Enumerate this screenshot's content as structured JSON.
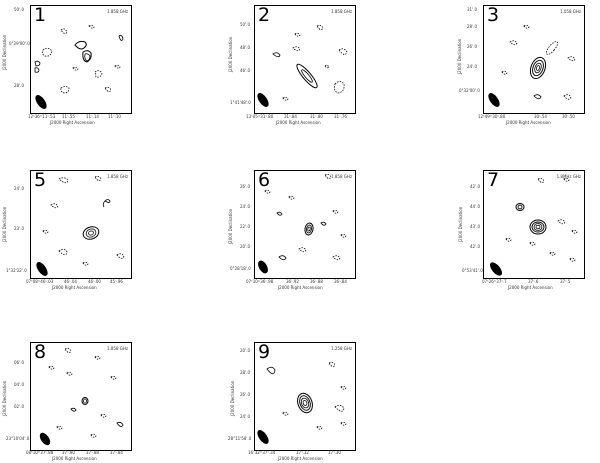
{
  "panels": [
    {
      "number": "1",
      "freq": "1.858 GHz",
      "ylabel": "J2000 Declination",
      "xlabel": "J2000 Right Ascension",
      "yticks": [
        "50'.0",
        "0°29'00'.0",
        "28'.0"
      ],
      "xticks": [
        "12ʰ36ᵐ11ˢ.53",
        "11ˢ.55",
        "11ˢ.14",
        "11ˢ.10"
      ]
    },
    {
      "number": "2",
      "freq": "1.858 GHz",
      "ylabel": "J2000 Declination",
      "xlabel": "J2000 Right Ascension",
      "yticks": [
        "50'.0",
        "48'.0",
        "46'.0",
        "1°41'48'.0"
      ],
      "xticks": [
        "13ʰ05ᵐ31ˢ.80",
        "31ˢ.84",
        "31ˢ.80",
        "31ˢ.76"
      ]
    },
    {
      "number": "3",
      "freq": "1.058 GHz",
      "ylabel": "J2000 Declination",
      "xlabel": "J2000 Right Ascension",
      "yticks": [
        "31'.0",
        "28'.0",
        "26'.0",
        "24'.0",
        "0°32'00'.0"
      ],
      "xticks": [
        "12ʰ49ᵐ30ˢ.80",
        "30ˢ.54",
        "30ˢ.50"
      ]
    },
    {
      "number": "5",
      "freq": "1.858 GHz",
      "ylabel": "J2000 Declination",
      "xlabel": "J2000 Right Ascension",
      "yticks": [
        "24'.0",
        "23'.0",
        "1°32'22'.0"
      ],
      "xticks": [
        "07ʰ08ᵐ46ˢ.03",
        "46ˢ.04",
        "46ˢ.00",
        "45ˢ.96"
      ]
    },
    {
      "number": "6",
      "freq": "1.858 GHz",
      "ylabel": "J2000 Declination",
      "xlabel": "J2000 Right Ascension",
      "yticks": [
        "26'.0",
        "24'.0",
        "22'.0",
        "20'.0",
        "0°28'18'.0"
      ],
      "xticks": [
        "07ʰ10ᵐ36ˢ.98",
        "36ˢ.92",
        "36ˢ.88",
        "36ˢ.84"
      ]
    },
    {
      "number": "7",
      "freq": "1.8MHz GHz",
      "ylabel": "J2000 Declination",
      "xlabel": "J2000 Right Ascension",
      "yticks": [
        "42'.0",
        "44'.0",
        "43'.0",
        "42'.0",
        "0°53'41'.0"
      ],
      "xticks": [
        "07ʰ26ᵐ37ˢ.7",
        "37ˢ.6",
        "37ˢ.5"
      ]
    },
    {
      "number": "8",
      "freq": "1.858 GHz",
      "ylabel": "J2000 Declination",
      "xlabel": "J2000 Right Ascension",
      "yticks": [
        "06'.0",
        "04'.0",
        "02'.0",
        "23°10'04'.0"
      ],
      "xticks": [
        "08ʰ10ᵐ37ˢ.88",
        "37ˢ.90",
        "37ˢ.88",
        "37ˢ.84"
      ]
    },
    {
      "number": "9",
      "freq": "1.258 GHz",
      "ylabel": "J2000 Declination",
      "xlabel": "J2000 Right Ascension",
      "yticks": [
        "20'.0",
        "28'.0",
        "26'.0",
        "24'.0",
        "28°11'58'.0"
      ],
      "xticks": [
        "16ʰ32ᵐ37ˢ.34",
        "37ˢ.32",
        "37ˢ.30"
      ]
    }
  ]
}
